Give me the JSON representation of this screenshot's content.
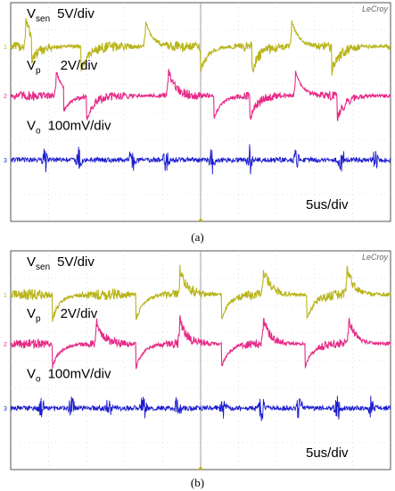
{
  "chart_data": [
    {
      "type": "line",
      "panel": "(a)",
      "brand": "LeCroy",
      "timebase": "5us/div",
      "grid": true,
      "channel_markers": [
        "1",
        "2",
        "3"
      ],
      "series": [
        {
          "name": "Vsen",
          "symbol": "V",
          "subscript": "sen",
          "scale": "5V/div",
          "color": "#b8b419",
          "pulse_times_div": [
            0.4,
            3.55,
            7.4
          ],
          "negative_times_div": [
            0.55,
            1.85,
            5.0,
            6.35,
            8.45
          ]
        },
        {
          "name": "Vp",
          "symbol": "V",
          "subscript": "p",
          "scale": "2V/div",
          "color": "#e62a87",
          "pulse_times_div": [
            1.2,
            4.15,
            7.5
          ],
          "negative_times_div": [
            1.4,
            2.0,
            5.35,
            6.3,
            8.6
          ]
        },
        {
          "name": "Vo",
          "symbol": "V",
          "subscript": "o",
          "scale": "100mV/div",
          "color": "#1c1ccf",
          "spike_times_div": [
            0.9,
            1.8,
            3.2,
            4.1,
            5.3,
            6.3,
            7.5,
            8.7,
            9.6
          ]
        }
      ]
    },
    {
      "type": "line",
      "panel": "(b)",
      "brand": "LeCroy",
      "timebase": "5us/div",
      "grid": true,
      "channel_markers": [
        "1",
        "2",
        "3"
      ],
      "series": [
        {
          "name": "Vsen",
          "symbol": "V",
          "subscript": "sen",
          "scale": "5V/div",
          "color": "#b8b419",
          "pulse_times_div": [
            4.45,
            6.65,
            8.85
          ],
          "negative_times_div": [
            1.1,
            3.3,
            5.55,
            7.8
          ]
        },
        {
          "name": "Vp",
          "symbol": "V",
          "subscript": "p",
          "scale": "2V/div",
          "color": "#e62a87",
          "pulse_times_div": [
            2.25,
            4.45,
            6.65,
            8.9
          ],
          "negative_times_div": [
            1.1,
            3.3,
            5.55,
            7.75
          ]
        },
        {
          "name": "Vo",
          "symbol": "V",
          "subscript": "o",
          "scale": "100mV/div",
          "color": "#1c1ccf",
          "spike_times_div": [
            0.8,
            1.6,
            2.6,
            3.5,
            4.4,
            5.6,
            6.6,
            7.6,
            8.6,
            9.5
          ]
        }
      ]
    }
  ]
}
